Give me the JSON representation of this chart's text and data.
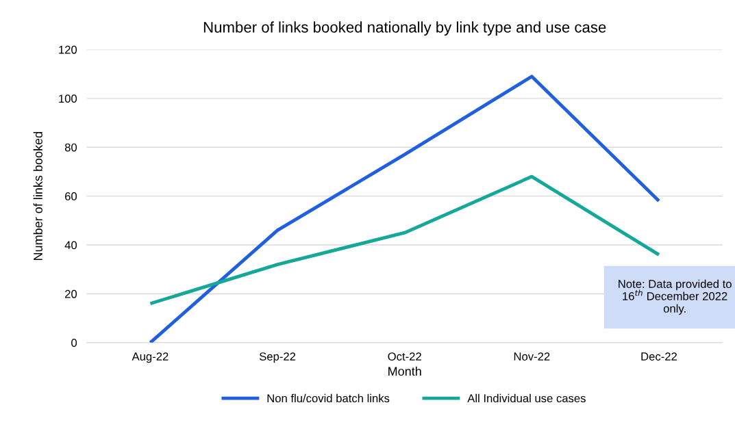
{
  "chart_data": {
    "type": "line",
    "title": "Number of links booked nationally by link type and use case",
    "xlabel": "Month",
    "ylabel": "Number of links booked",
    "categories": [
      "Aug-22",
      "Sep-22",
      "Oct-22",
      "Nov-22",
      "Dec-22"
    ],
    "series": [
      {
        "name": "Non flu/covid batch links",
        "color": "#1f5fe0",
        "values": [
          0,
          46,
          77,
          109,
          58
        ]
      },
      {
        "name": "All Individual use cases",
        "color": "#14a89a",
        "values": [
          16,
          32,
          45,
          68,
          36
        ]
      }
    ],
    "ylim": [
      0,
      120
    ],
    "yticks": [
      0,
      20,
      40,
      60,
      80,
      100,
      120
    ],
    "grid": "y",
    "legend": "bottom",
    "marker": "none",
    "line_style": "solid",
    "annotations": [
      "Note: Data provided to 16$^{th}$ December 2022 only."
    ]
  }
}
